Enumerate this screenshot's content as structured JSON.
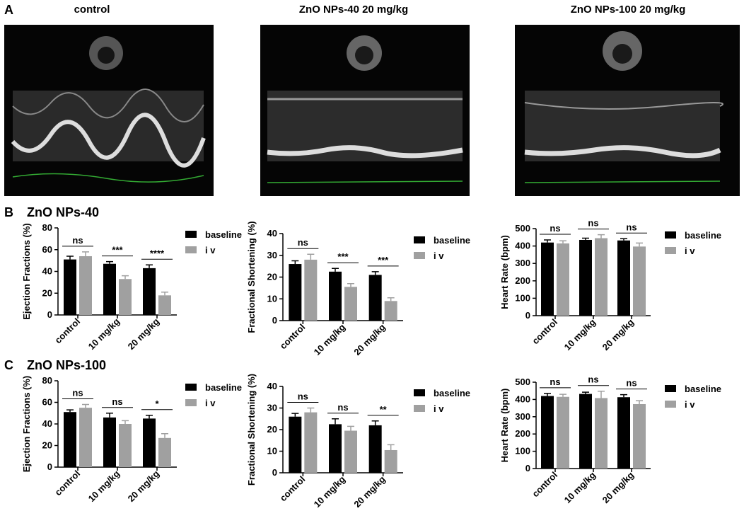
{
  "figure": {
    "panel_labels": [
      "A",
      "B",
      "C"
    ],
    "image_titles": [
      "control",
      "ZnO NPs-40 20 mg/kg",
      "ZnO NPs-100 20 mg/kg"
    ],
    "section_titles": [
      "ZnO NPs-40",
      "ZnO NPs-100"
    ]
  },
  "chart_data": [
    {
      "type": "bar",
      "ylabel": "Ejection Fractions (%)",
      "categories": [
        "control",
        "10 mg/kg",
        "20 mg/kg"
      ],
      "series": [
        {
          "name": "baseline",
          "color": "#000000",
          "values": [
            51,
            47,
            43
          ],
          "errors": [
            3,
            2,
            3
          ]
        },
        {
          "name": "i v",
          "color": "#a0a0a0",
          "values": [
            54,
            33,
            18
          ],
          "errors": [
            4,
            3,
            3
          ]
        }
      ],
      "ylim": [
        0,
        80
      ],
      "yticks": [
        0,
        20,
        40,
        60,
        80
      ],
      "annotations": [
        "ns",
        "***",
        "****"
      ],
      "legend": "right"
    },
    {
      "type": "bar",
      "ylabel": "Fractional Shortening (%)",
      "categories": [
        "control",
        "10 mg/kg",
        "20 mg/kg"
      ],
      "series": [
        {
          "name": "baseline",
          "color": "#000000",
          "values": [
            26,
            22.5,
            21
          ],
          "errors": [
            1.5,
            1.5,
            1.5
          ]
        },
        {
          "name": "i v",
          "color": "#a0a0a0",
          "values": [
            28,
            15.5,
            9
          ],
          "errors": [
            2.5,
            1.5,
            1.5
          ]
        }
      ],
      "ylim": [
        0,
        40
      ],
      "yticks": [
        0,
        10,
        20,
        30,
        40
      ],
      "annotations": [
        "ns",
        "***",
        "***"
      ],
      "legend": "right"
    },
    {
      "type": "bar",
      "ylabel": "Heart Rate (bpm)",
      "categories": [
        "control",
        "10 mg/kg",
        "20 mg/kg"
      ],
      "series": [
        {
          "name": "baseline",
          "color": "#000000",
          "values": [
            420,
            435,
            432
          ],
          "errors": [
            15,
            10,
            10
          ]
        },
        {
          "name": "i v",
          "color": "#a0a0a0",
          "values": [
            415,
            445,
            397
          ],
          "errors": [
            15,
            20,
            20
          ]
        }
      ],
      "ylim": [
        0,
        500
      ],
      "yticks": [
        0,
        100,
        200,
        300,
        400,
        500
      ],
      "annotations": [
        "ns",
        "ns",
        "ns"
      ],
      "legend": "right"
    },
    {
      "type": "bar",
      "ylabel": "Ejection Fractions (%)",
      "categories": [
        "control",
        "10 mg/kg",
        "20 mg/kg"
      ],
      "series": [
        {
          "name": "baseline",
          "color": "#000000",
          "values": [
            51,
            46,
            45
          ],
          "errors": [
            2,
            4,
            3
          ]
        },
        {
          "name": "i v",
          "color": "#a0a0a0",
          "values": [
            55,
            40,
            27
          ],
          "errors": [
            3,
            3,
            4
          ]
        }
      ],
      "ylim": [
        0,
        80
      ],
      "yticks": [
        0,
        20,
        40,
        60,
        80
      ],
      "annotations": [
        "ns",
        "ns",
        "*"
      ],
      "legend": "right"
    },
    {
      "type": "bar",
      "ylabel": "Fractional Shortening (%)",
      "categories": [
        "control",
        "10 mg/kg",
        "20 mg/kg"
      ],
      "series": [
        {
          "name": "baseline",
          "color": "#000000",
          "values": [
            26,
            22.5,
            22
          ],
          "errors": [
            1.5,
            2.5,
            2
          ]
        },
        {
          "name": "i v",
          "color": "#a0a0a0",
          "values": [
            28,
            19.5,
            10.5
          ],
          "errors": [
            2,
            2,
            2.5
          ]
        }
      ],
      "ylim": [
        0,
        40
      ],
      "yticks": [
        0,
        10,
        20,
        30,
        40
      ],
      "annotations": [
        "ns",
        "ns",
        "**"
      ],
      "legend": "right"
    },
    {
      "type": "bar",
      "ylabel": "Heart Rate (bpm)",
      "categories": [
        "control",
        "10 mg/kg",
        "20 mg/kg"
      ],
      "series": [
        {
          "name": "baseline",
          "color": "#000000",
          "values": [
            420,
            432,
            413
          ],
          "errors": [
            15,
            10,
            15
          ]
        },
        {
          "name": "i v",
          "color": "#a0a0a0",
          "values": [
            415,
            408,
            373
          ],
          "errors": [
            15,
            40,
            20
          ]
        }
      ],
      "ylim": [
        0,
        500
      ],
      "yticks": [
        0,
        100,
        200,
        300,
        400,
        500
      ],
      "annotations": [
        "ns",
        "ns",
        "ns"
      ],
      "legend": "right"
    }
  ]
}
